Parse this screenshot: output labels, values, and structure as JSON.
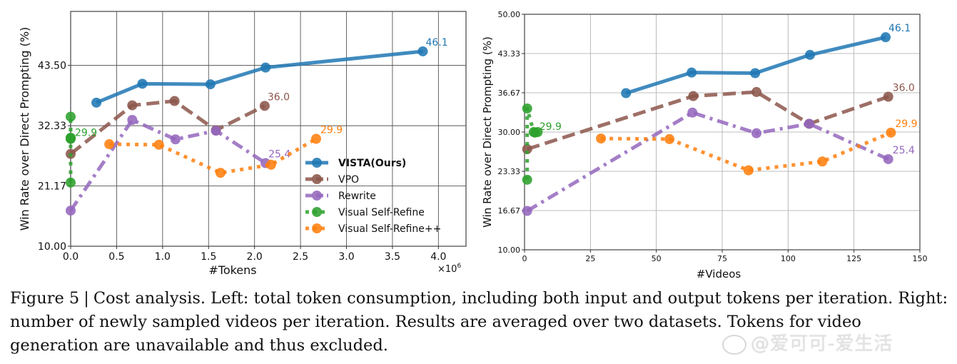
{
  "figure": {
    "caption_label": "Figure 5",
    "caption_text": "Cost analysis. Left: total token consumption, including both input and output tokens per iteration. Right: number of newly sampled videos per iteration. Results are averaged over two datasets. Tokens for video generation are unavailable and thus excluded.",
    "watermark": "@爱可可-爱生活"
  },
  "series_style": {
    "VISTA(Ours)": {
      "color": "#1f77b4",
      "dash": "solid",
      "bold": true
    },
    "VPO": {
      "color": "#8c564b",
      "dash": "dashed",
      "bold": false
    },
    "Rewrite": {
      "color": "#9467bd",
      "dash": "dashdot",
      "bold": false
    },
    "Visual Self-Refine": {
      "color": "#2ca02c",
      "dash": "dotted",
      "bold": false
    },
    "Visual Self-Refine++": {
      "color": "#ff7f0e",
      "dash": "dotted",
      "bold": false
    }
  },
  "chart_data": [
    {
      "type": "line",
      "title": "",
      "xlabel": "#Tokens",
      "x_multiplier": "×10^6",
      "ylabel": "Win Rate over Direct Prompting (%)",
      "xlim": [
        0,
        4.3
      ],
      "ylim": [
        10,
        53.5
      ],
      "xticks": [
        0.0,
        0.5,
        1.0,
        1.5,
        2.0,
        2.5,
        3.0,
        3.5,
        4.0
      ],
      "xtick_labels": [
        "0.0",
        "0.5",
        "1.0",
        "1.5",
        "2.0",
        "2.5",
        "3.0",
        "3.5",
        "4.0"
      ],
      "yticks": [
        10.0,
        21.17,
        32.33,
        43.5
      ],
      "ytick_labels": [
        "10.00",
        "21.17",
        "32.33",
        "43.50"
      ],
      "grid": true,
      "legend": "lower-right",
      "series": [
        {
          "name": "VISTA(Ours)",
          "x": [
            0.28,
            0.78,
            1.52,
            2.12,
            3.83
          ],
          "y": [
            36.6,
            40.1,
            40.0,
            43.1,
            46.1
          ],
          "annotation": "46.1"
        },
        {
          "name": "VPO",
          "x": [
            0.0,
            0.67,
            1.13,
            1.58,
            2.11
          ],
          "y": [
            27.1,
            36.1,
            36.9,
            31.5,
            36.0
          ],
          "annotation": "36.0"
        },
        {
          "name": "Rewrite",
          "x": [
            0.0,
            0.67,
            1.14,
            1.58,
            2.12
          ],
          "y": [
            16.6,
            33.4,
            29.8,
            31.4,
            25.4
          ],
          "annotation": "25.4"
        },
        {
          "name": "Visual Self-Refine",
          "x": [
            0.0,
            0.0,
            0.0,
            0.0,
            0.0
          ],
          "y": [
            21.8,
            34.0,
            30.0,
            30.1,
            29.9
          ],
          "annotation": "29.9"
        },
        {
          "name": "Visual Self-Refine++",
          "x": [
            0.42,
            0.96,
            1.63,
            2.18,
            2.67
          ],
          "y": [
            28.9,
            28.8,
            23.6,
            25.1,
            29.9
          ],
          "annotation": "29.9"
        }
      ]
    },
    {
      "type": "line",
      "title": "",
      "xlabel": "#Videos",
      "ylabel": "Win Rate over Direct Prompting (%)",
      "xlim": [
        0,
        150
      ],
      "ylim": [
        10,
        50
      ],
      "xticks": [
        0,
        25,
        50,
        75,
        100,
        125,
        150
      ],
      "xtick_labels": [
        "0",
        "25",
        "50",
        "75",
        "100",
        "125",
        "150"
      ],
      "yticks": [
        10.0,
        16.67,
        23.33,
        30.0,
        36.67,
        43.33,
        50.0
      ],
      "ytick_labels": [
        "10.00",
        "16.67",
        "23.33",
        "30.00",
        "36.67",
        "43.33",
        "50.00"
      ],
      "grid": true,
      "legend": "none",
      "series": [
        {
          "name": "VISTA(Ours)",
          "x": [
            38.5,
            63.4,
            87.5,
            108.3,
            137
          ],
          "y": [
            36.6,
            40.1,
            40.0,
            43.1,
            46.1
          ],
          "annotation": "46.1"
        },
        {
          "name": "VPO",
          "x": [
            1,
            64,
            88,
            108,
            138
          ],
          "y": [
            27.1,
            36.1,
            36.8,
            31.4,
            36.0
          ],
          "annotation": "36.0"
        },
        {
          "name": "Rewrite",
          "x": [
            1,
            63.7,
            88,
            108,
            138
          ],
          "y": [
            16.6,
            33.3,
            29.8,
            31.4,
            25.4
          ],
          "annotation": "25.4"
        },
        {
          "name": "Visual Self-Refine",
          "x": [
            1,
            1,
            3.5,
            5,
            4
          ],
          "y": [
            21.9,
            34.0,
            30.0,
            30.0,
            29.9
          ],
          "annotation": "29.9"
        },
        {
          "name": "Visual Self-Refine++",
          "x": [
            29,
            55,
            85,
            113,
            139
          ],
          "y": [
            28.9,
            28.8,
            23.5,
            25.0,
            29.9
          ],
          "annotation": "29.9"
        }
      ]
    }
  ]
}
